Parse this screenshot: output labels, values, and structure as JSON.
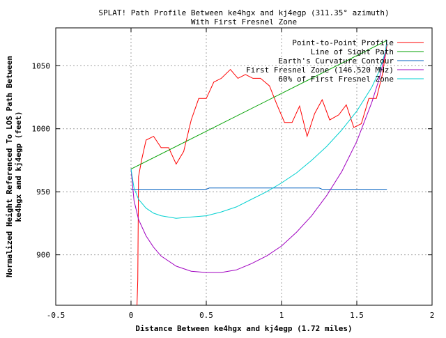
{
  "chart_data": {
    "type": "line",
    "title": "SPLAT! Path Profile Between ke4hgx and kj4egp (311.35° azimuth)",
    "subtitle": "With First Fresnel Zone",
    "xlabel": "Distance Between ke4hgx and kj4egp (1.72 miles)",
    "ylabel_lines": [
      "Normalized Height Referenced To LOS Path Between",
      "ke4hgx and kj4egp (feet)"
    ],
    "xlim": [
      -0.5,
      2
    ],
    "ylim": [
      860,
      1080
    ],
    "x_ticks": [
      -0.5,
      0,
      0.5,
      1,
      1.5,
      2
    ],
    "x_tick_labels": [
      "-0.5",
      "0",
      "0.5",
      "1",
      "1.5",
      "2"
    ],
    "y_ticks": [
      900,
      950,
      1000,
      1050
    ],
    "y_tick_labels": [
      "900",
      "950",
      "1000",
      "1050"
    ],
    "grid": true,
    "legend_position": "top-right",
    "series": [
      {
        "name": "Point-to-Point Profile",
        "color": "#ff0000",
        "points": [
          [
            0.04,
            860
          ],
          [
            0.045,
            880
          ],
          [
            0.05,
            962
          ],
          [
            0.07,
            975
          ],
          [
            0.1,
            991
          ],
          [
            0.15,
            994
          ],
          [
            0.2,
            985
          ],
          [
            0.25,
            985
          ],
          [
            0.3,
            972
          ],
          [
            0.35,
            982
          ],
          [
            0.4,
            1007
          ],
          [
            0.45,
            1024
          ],
          [
            0.5,
            1024
          ],
          [
            0.55,
            1037
          ],
          [
            0.6,
            1040
          ],
          [
            0.66,
            1047
          ],
          [
            0.71,
            1040
          ],
          [
            0.76,
            1043
          ],
          [
            0.81,
            1040
          ],
          [
            0.86,
            1040
          ],
          [
            0.92,
            1034
          ],
          [
            0.97,
            1019
          ],
          [
            1.02,
            1005
          ],
          [
            1.07,
            1005
          ],
          [
            1.12,
            1018
          ],
          [
            1.17,
            994
          ],
          [
            1.22,
            1012
          ],
          [
            1.27,
            1023
          ],
          [
            1.32,
            1007
          ],
          [
            1.38,
            1011
          ],
          [
            1.43,
            1019
          ],
          [
            1.48,
            1001
          ],
          [
            1.53,
            1004
          ],
          [
            1.58,
            1024
          ],
          [
            1.63,
            1024
          ],
          [
            1.67,
            1043
          ],
          [
            1.7,
            1066
          ]
        ]
      },
      {
        "name": "Line of Sight Path",
        "color": "#00a000",
        "points": [
          [
            0,
            968
          ],
          [
            1.7,
            1070
          ]
        ]
      },
      {
        "name": "Earth's Curvature Contour",
        "color": "#0060c0",
        "points": [
          [
            0,
            952
          ],
          [
            0.5,
            952
          ],
          [
            0.52,
            953
          ],
          [
            1.25,
            953
          ],
          [
            1.27,
            952
          ],
          [
            1.7,
            952
          ]
        ]
      },
      {
        "name": "First Fresnel Zone (146.520 MHz)",
        "color": "#a000c0",
        "points": [
          [
            0,
            968
          ],
          [
            0.02,
            943
          ],
          [
            0.05,
            928
          ],
          [
            0.1,
            915
          ],
          [
            0.15,
            906
          ],
          [
            0.2,
            899
          ],
          [
            0.3,
            891
          ],
          [
            0.4,
            887
          ],
          [
            0.5,
            886
          ],
          [
            0.55,
            886
          ],
          [
            0.6,
            886
          ],
          [
            0.7,
            888
          ],
          [
            0.8,
            893
          ],
          [
            0.9,
            899
          ],
          [
            1.0,
            907
          ],
          [
            1.1,
            918
          ],
          [
            1.2,
            931
          ],
          [
            1.3,
            947
          ],
          [
            1.4,
            966
          ],
          [
            1.5,
            990
          ],
          [
            1.6,
            1021
          ],
          [
            1.65,
            1040
          ],
          [
            1.69,
            1060
          ],
          [
            1.7,
            1070
          ]
        ]
      },
      {
        "name": "60% of First Fresnel Zone",
        "color": "#00d0d0",
        "points": [
          [
            0,
            968
          ],
          [
            0.02,
            953
          ],
          [
            0.05,
            944
          ],
          [
            0.1,
            937
          ],
          [
            0.15,
            933
          ],
          [
            0.2,
            931
          ],
          [
            0.3,
            929
          ],
          [
            0.4,
            930
          ],
          [
            0.5,
            931
          ],
          [
            0.6,
            934
          ],
          [
            0.7,
            938
          ],
          [
            0.8,
            944
          ],
          [
            0.9,
            950
          ],
          [
            1.0,
            957
          ],
          [
            1.1,
            965
          ],
          [
            1.2,
            975
          ],
          [
            1.3,
            986
          ],
          [
            1.4,
            999
          ],
          [
            1.5,
            1014
          ],
          [
            1.6,
            1033
          ],
          [
            1.65,
            1046
          ],
          [
            1.69,
            1061
          ],
          [
            1.7,
            1070
          ]
        ]
      }
    ]
  }
}
